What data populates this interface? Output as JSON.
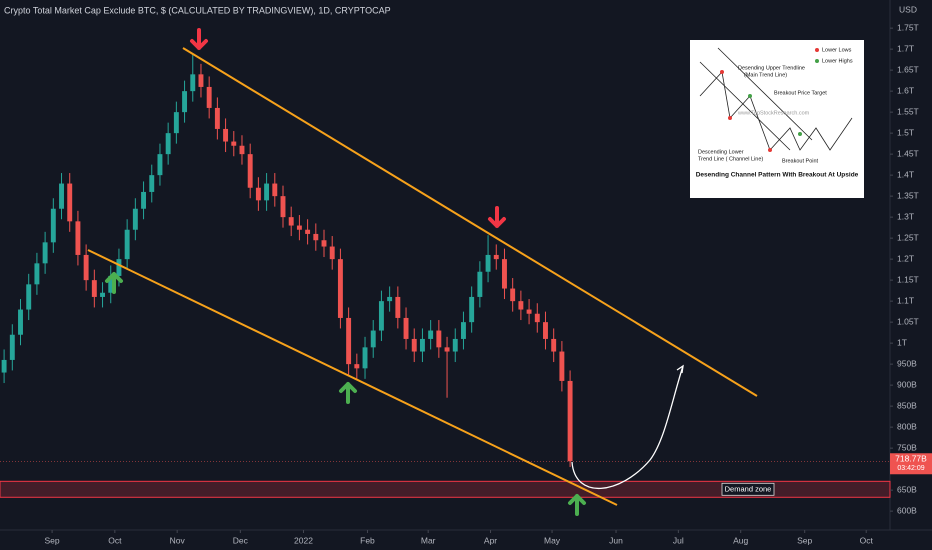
{
  "chart_data": {
    "type": "candlestick",
    "title": "Crypto Total Market Cap Exclude BTC, $ (CALCULATED BY TRADINGVIEW), 1D, CRYPTOCAP",
    "currency_label": "USD",
    "up_color": "#26a69a",
    "down_color": "#ef5350",
    "open": [
      930,
      960,
      1020,
      1080,
      1140,
      1190,
      1240,
      1320,
      1380,
      1290,
      1210,
      1150,
      1110,
      1120,
      1160,
      1200,
      1270,
      1320,
      1360,
      1400,
      1450,
      1500,
      1550,
      1600,
      1640,
      1610,
      1560,
      1510,
      1480,
      1470,
      1450,
      1370,
      1340,
      1380,
      1350,
      1300,
      1280,
      1270,
      1260,
      1245,
      1230,
      1200,
      1060,
      950,
      940,
      990,
      1030,
      1100,
      1110,
      1060,
      1010,
      980,
      1010,
      1030,
      990,
      980,
      1010,
      1050,
      1110,
      1170,
      1210,
      1200,
      1130,
      1100,
      1080,
      1070,
      1050,
      1010,
      980,
      910
    ],
    "high": [
      985,
      1045,
      1105,
      1165,
      1215,
      1265,
      1345,
      1405,
      1405,
      1315,
      1235,
      1175,
      1145,
      1185,
      1225,
      1295,
      1345,
      1385,
      1425,
      1475,
      1525,
      1575,
      1625,
      1690,
      1665,
      1635,
      1585,
      1535,
      1505,
      1495,
      1475,
      1395,
      1405,
      1405,
      1375,
      1325,
      1305,
      1295,
      1285,
      1270,
      1255,
      1225,
      1085,
      975,
      1015,
      1055,
      1125,
      1135,
      1135,
      1085,
      1035,
      1035,
      1055,
      1055,
      1015,
      1035,
      1075,
      1135,
      1195,
      1257,
      1235,
      1225,
      1155,
      1125,
      1105,
      1095,
      1075,
      1035,
      1005,
      935
    ],
    "low": [
      905,
      935,
      995,
      1055,
      1115,
      1165,
      1215,
      1295,
      1265,
      1185,
      1125,
      1085,
      1085,
      1095,
      1135,
      1175,
      1245,
      1295,
      1335,
      1375,
      1425,
      1475,
      1525,
      1575,
      1585,
      1535,
      1485,
      1455,
      1445,
      1425,
      1345,
      1315,
      1315,
      1325,
      1275,
      1255,
      1245,
      1235,
      1220,
      1205,
      1175,
      1035,
      925,
      915,
      915,
      965,
      1005,
      1075,
      1035,
      985,
      955,
      955,
      985,
      965,
      870,
      955,
      985,
      1025,
      1085,
      1145,
      1175,
      1105,
      1075,
      1055,
      1045,
      1025,
      985,
      955,
      885,
      705
    ],
    "close": [
      960,
      1020,
      1080,
      1140,
      1190,
      1240,
      1320,
      1380,
      1290,
      1210,
      1150,
      1110,
      1120,
      1160,
      1200,
      1270,
      1320,
      1360,
      1400,
      1450,
      1500,
      1550,
      1600,
      1640,
      1610,
      1560,
      1510,
      1480,
      1470,
      1450,
      1370,
      1340,
      1380,
      1350,
      1300,
      1280,
      1270,
      1260,
      1245,
      1230,
      1200,
      1060,
      950,
      940,
      990,
      1030,
      1100,
      1110,
      1060,
      1010,
      980,
      1010,
      1030,
      990,
      980,
      1010,
      1050,
      1110,
      1170,
      1210,
      1200,
      1130,
      1100,
      1080,
      1070,
      1050,
      1010,
      980,
      910,
      718.77
    ],
    "last_price_label": "718.77B",
    "countdown_label": "03:42:09",
    "xlim": [
      -0.5,
      108
    ],
    "xticks": [
      {
        "value": 5.85,
        "label": "Sep"
      },
      {
        "value": 13.5,
        "label": "Oct"
      },
      {
        "value": 21.1,
        "label": "Nov"
      },
      {
        "value": 28.8,
        "label": "Dec"
      },
      {
        "value": 36.5,
        "label": "2022"
      },
      {
        "value": 44.3,
        "label": "Feb"
      },
      {
        "value": 51.7,
        "label": "Mar"
      },
      {
        "value": 59.3,
        "label": "Apr"
      },
      {
        "value": 66.8,
        "label": "May"
      },
      {
        "value": 74.6,
        "label": "Jun"
      },
      {
        "value": 82.2,
        "label": "Jul"
      },
      {
        "value": 89.8,
        "label": "Aug"
      },
      {
        "value": 97.6,
        "label": "Sep"
      },
      {
        "value": 105.1,
        "label": "Oct"
      }
    ],
    "ylim": [
      567,
      1817
    ],
    "yticks": [
      {
        "value": 1750,
        "label": "1.75T"
      },
      {
        "value": 1700,
        "label": "1.7T"
      },
      {
        "value": 1650,
        "label": "1.65T"
      },
      {
        "value": 1600,
        "label": "1.6T"
      },
      {
        "value": 1550,
        "label": "1.55T"
      },
      {
        "value": 1500,
        "label": "1.5T"
      },
      {
        "value": 1450,
        "label": "1.45T"
      },
      {
        "value": 1400,
        "label": "1.4T"
      },
      {
        "value": 1350,
        "label": "1.35T"
      },
      {
        "value": 1300,
        "label": "1.3T"
      },
      {
        "value": 1250,
        "label": "1.25T"
      },
      {
        "value": 1200,
        "label": "1.2T"
      },
      {
        "value": 1150,
        "label": "1.15T"
      },
      {
        "value": 1100,
        "label": "1.1T"
      },
      {
        "value": 1050,
        "label": "1.05T"
      },
      {
        "value": 1000,
        "label": "1T"
      },
      {
        "value": 950,
        "label": "950B"
      },
      {
        "value": 900,
        "label": "900B"
      },
      {
        "value": 850,
        "label": "850B"
      },
      {
        "value": 800,
        "label": "800B"
      },
      {
        "value": 750,
        "label": "750B"
      },
      {
        "value": 650,
        "label": "650B"
      },
      {
        "value": 600,
        "label": "600B"
      }
    ],
    "grid": false,
    "demand_zone": {
      "label": "Demand zone",
      "range": [
        633,
        671
      ]
    }
  },
  "inset": {
    "legend": [
      "Lower Lows",
      "Lower Highs"
    ],
    "upper_label": "Desending Upper Trendline",
    "upper_sub": "(Main Trend Line)",
    "target_label": "Breakout Price Target",
    "site": "www.TopStockResearch.com",
    "lower_label": "Descending Lower",
    "lower_sub": "Trend Line ( Channel Line)",
    "breakout_label": "Breakout Point",
    "caption": "Desending Channel Pattern With Breakout At Upside"
  }
}
